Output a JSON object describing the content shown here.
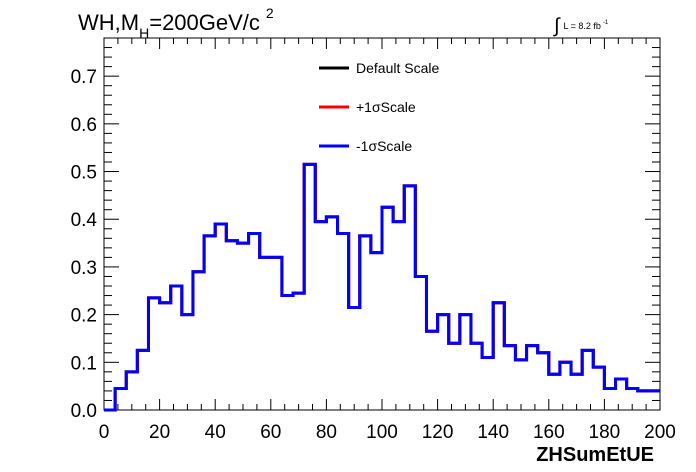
{
  "chart_data": {
    "type": "line",
    "title": {
      "prefix": "WH,M",
      "subscript": "H",
      "rest": "=200GeV/c",
      "superscript": "2"
    },
    "luminosity": {
      "symbol": "∫",
      "text": "L = 8.2 fb",
      "superscript": "-1"
    },
    "xlabel": "ZHSumEtUE",
    "ylabel": "",
    "xlim": [
      0,
      200
    ],
    "ylim": [
      0,
      0.78
    ],
    "x_ticks": [
      0,
      20,
      40,
      60,
      80,
      100,
      120,
      140,
      160,
      180,
      200
    ],
    "y_ticks": [
      0.0,
      0.1,
      0.2,
      0.3,
      0.4,
      0.5,
      0.6,
      0.7
    ],
    "y_tick_labels": [
      "0.0",
      "0.1",
      "0.2",
      "0.3",
      "0.4",
      "0.5",
      "0.6",
      "0.7"
    ],
    "legend": {
      "position": "top-center"
    },
    "bin_edges": [
      0,
      4,
      8,
      12,
      16,
      20,
      24,
      28,
      32,
      36,
      40,
      44,
      48,
      52,
      56,
      60,
      64,
      68,
      72,
      76,
      80,
      84,
      88,
      92,
      96,
      100,
      104,
      108,
      112,
      116,
      120,
      124,
      128,
      132,
      136,
      140,
      144,
      148,
      152,
      156,
      160,
      164,
      168,
      172,
      176,
      180,
      184,
      188,
      192,
      196,
      200
    ],
    "series": [
      {
        "name": "Default Scale",
        "color": "#000000",
        "values": [
          0.0,
          0.045,
          0.08,
          0.125,
          0.235,
          0.225,
          0.26,
          0.2,
          0.29,
          0.365,
          0.39,
          0.355,
          0.35,
          0.37,
          0.32,
          0.32,
          0.24,
          0.245,
          0.515,
          0.395,
          0.405,
          0.37,
          0.215,
          0.365,
          0.33,
          0.425,
          0.395,
          0.47,
          0.28,
          0.165,
          0.2,
          0.14,
          0.2,
          0.14,
          0.11,
          0.225,
          0.135,
          0.105,
          0.135,
          0.12,
          0.075,
          0.1,
          0.075,
          0.125,
          0.09,
          0.045,
          0.065,
          0.045,
          0.04,
          0.04
        ]
      },
      {
        "name": "+1σScale",
        "color": "#ff0000",
        "values": [
          0.0,
          0.045,
          0.08,
          0.125,
          0.235,
          0.225,
          0.26,
          0.2,
          0.29,
          0.365,
          0.39,
          0.355,
          0.35,
          0.37,
          0.32,
          0.32,
          0.24,
          0.245,
          0.515,
          0.395,
          0.405,
          0.37,
          0.215,
          0.365,
          0.33,
          0.425,
          0.395,
          0.47,
          0.28,
          0.165,
          0.2,
          0.14,
          0.2,
          0.14,
          0.11,
          0.225,
          0.135,
          0.105,
          0.135,
          0.12,
          0.075,
          0.1,
          0.075,
          0.125,
          0.09,
          0.045,
          0.065,
          0.045,
          0.04,
          0.04
        ]
      },
      {
        "name": "-1σScale",
        "color": "#0000ff",
        "values": [
          0.0,
          0.045,
          0.08,
          0.125,
          0.235,
          0.225,
          0.26,
          0.2,
          0.29,
          0.365,
          0.39,
          0.355,
          0.35,
          0.37,
          0.32,
          0.32,
          0.24,
          0.245,
          0.515,
          0.395,
          0.405,
          0.37,
          0.215,
          0.365,
          0.33,
          0.425,
          0.395,
          0.47,
          0.28,
          0.165,
          0.2,
          0.14,
          0.2,
          0.14,
          0.11,
          0.225,
          0.135,
          0.105,
          0.135,
          0.12,
          0.075,
          0.1,
          0.075,
          0.125,
          0.09,
          0.045,
          0.065,
          0.045,
          0.04,
          0.04
        ]
      }
    ]
  }
}
